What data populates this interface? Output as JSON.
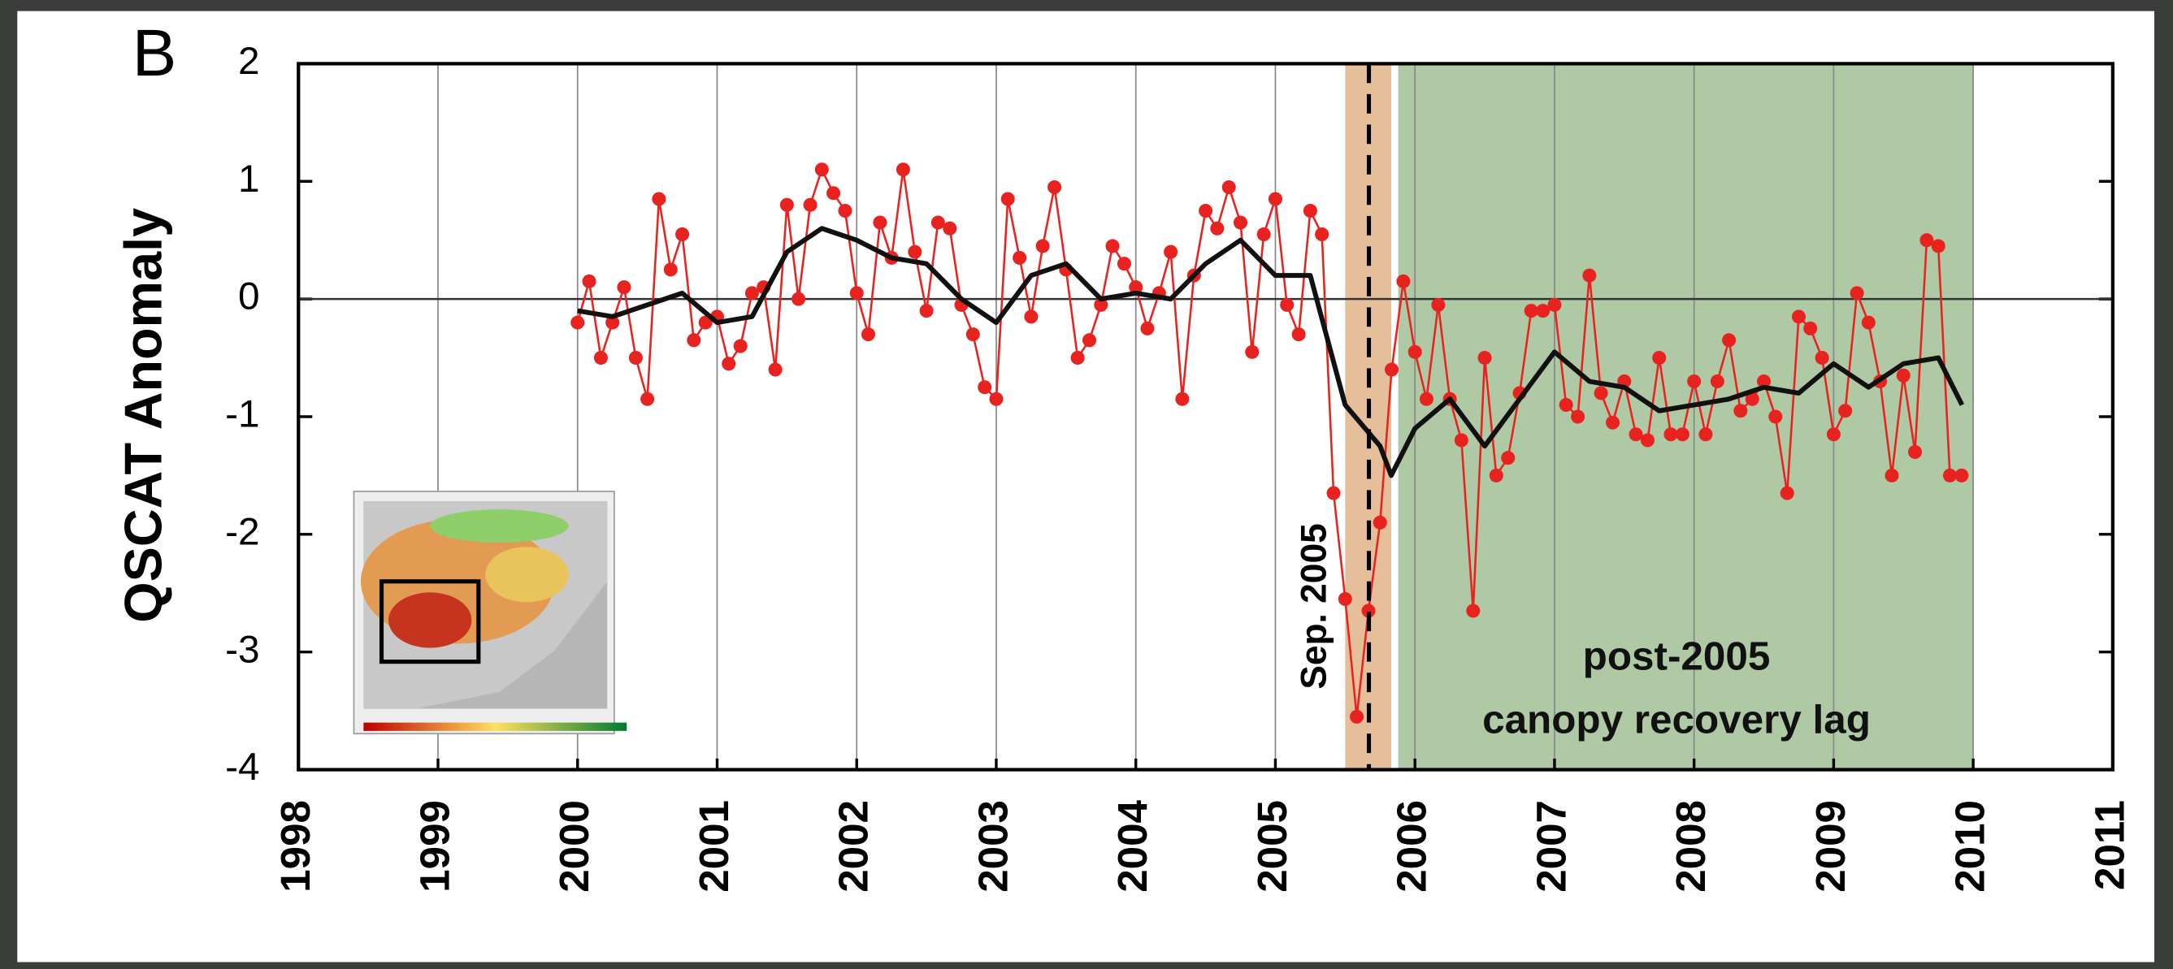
{
  "chart_data": {
    "type": "line",
    "panel_label": "B",
    "y_label": "QSCAT Anomaly",
    "xlim": [
      1998,
      2011
    ],
    "xticks": [
      1998,
      1999,
      2000,
      2001,
      2002,
      2003,
      2004,
      2005,
      2006,
      2007,
      2008,
      2009,
      2010,
      2011
    ],
    "ylim": [
      -4,
      2
    ],
    "yticks": [
      -4,
      -3,
      -2,
      -1,
      0,
      1,
      2
    ],
    "grid": true,
    "shaded_regions": [
      {
        "xlim": [
          2005.5,
          2005.83
        ],
        "color": "#e2b78f"
      },
      {
        "xlim": [
          2005.88,
          2010
        ],
        "color": "#a6c39b"
      }
    ],
    "event_line": 2005.67,
    "annotations": [
      "Sep. 2005",
      "post-2005",
      "canopy recovery lag"
    ],
    "series": [
      {
        "color": "#e8231f",
        "markers": true,
        "x": [
          2000,
          2000.083,
          2000.167,
          2000.25,
          2000.333,
          2000.417,
          2000.5,
          2000.583,
          2000.667,
          2000.75,
          2000.833,
          2000.917,
          2001,
          2001.083,
          2001.167,
          2001.25,
          2001.333,
          2001.417,
          2001.5,
          2001.583,
          2001.667,
          2001.75,
          2001.833,
          2001.917,
          2002,
          2002.083,
          2002.167,
          2002.25,
          2002.333,
          2002.417,
          2002.5,
          2002.583,
          2002.667,
          2002.75,
          2002.833,
          2002.917,
          2003,
          2003.083,
          2003.167,
          2003.25,
          2003.333,
          2003.417,
          2003.5,
          2003.583,
          2003.667,
          2003.75,
          2003.833,
          2003.917,
          2004,
          2004.083,
          2004.167,
          2004.25,
          2004.333,
          2004.417,
          2004.5,
          2004.583,
          2004.667,
          2004.75,
          2004.833,
          2004.917,
          2005,
          2005.083,
          2005.167,
          2005.25,
          2005.333,
          2005.417,
          2005.5,
          2005.583,
          2005.667,
          2005.75,
          2005.833,
          2005.917,
          2006,
          2006.083,
          2006.167,
          2006.25,
          2006.333,
          2006.417,
          2006.5,
          2006.583,
          2006.667,
          2006.75,
          2006.833,
          2006.917,
          2007,
          2007.083,
          2007.167,
          2007.25,
          2007.333,
          2007.417,
          2007.5,
          2007.583,
          2007.667,
          2007.75,
          2007.833,
          2007.917,
          2008,
          2008.083,
          2008.167,
          2008.25,
          2008.333,
          2008.417,
          2008.5,
          2008.583,
          2008.667,
          2008.75,
          2008.833,
          2008.917,
          2009,
          2009.083,
          2009.167,
          2009.25,
          2009.333,
          2009.417,
          2009.5,
          2009.583,
          2009.667,
          2009.75,
          2009.833,
          2009.917
        ],
        "values": [
          -0.2,
          0.15,
          -0.5,
          -0.2,
          0.1,
          -0.5,
          -0.85,
          0.85,
          0.25,
          0.55,
          -0.35,
          -0.2,
          -0.15,
          -0.55,
          -0.4,
          0.05,
          0.1,
          -0.6,
          0.8,
          0.0,
          0.8,
          1.1,
          0.9,
          0.75,
          0.05,
          -0.3,
          0.65,
          0.35,
          1.1,
          0.4,
          -0.1,
          0.65,
          0.6,
          -0.05,
          -0.3,
          -0.75,
          -0.85,
          0.85,
          0.35,
          -0.15,
          0.45,
          0.95,
          0.25,
          -0.5,
          -0.35,
          -0.05,
          0.45,
          0.3,
          0.1,
          -0.25,
          0.05,
          0.4,
          -0.85,
          0.2,
          0.75,
          0.6,
          0.95,
          0.65,
          -0.45,
          0.55,
          0.85,
          -0.05,
          -0.3,
          0.75,
          0.55,
          -1.65,
          -2.55,
          -3.55,
          -2.65,
          -1.9,
          -0.6,
          0.15,
          -0.45,
          -0.85,
          -0.05,
          -0.85,
          -1.2,
          -2.65,
          -0.5,
          -1.5,
          -1.35,
          -0.8,
          -0.1,
          -0.1,
          -0.05,
          -0.9,
          -1.0,
          0.2,
          -0.8,
          -1.05,
          -0.7,
          -1.15,
          -1.2,
          -0.5,
          -1.15,
          -1.15,
          -0.7,
          -1.15,
          -0.7,
          -0.35,
          -0.95,
          -0.85,
          -0.7,
          -1.0,
          -1.65,
          -0.15,
          -0.25,
          -0.5,
          -1.15,
          -0.95,
          0.05,
          -0.2,
          -0.7,
          -1.5,
          -0.65,
          -1.3,
          0.5,
          0.45,
          -1.5,
          -1.5
        ]
      },
      {
        "color": "#111111",
        "markers": false,
        "x": [
          2000,
          2000.25,
          2000.5,
          2000.75,
          2001,
          2001.25,
          2001.5,
          2001.75,
          2002,
          2002.25,
          2002.5,
          2002.75,
          2003,
          2003.25,
          2003.5,
          2003.75,
          2004,
          2004.25,
          2004.5,
          2004.75,
          2005,
          2005.25,
          2005.5,
          2005.75,
          2005.83,
          2006,
          2006.25,
          2006.5,
          2006.75,
          2007,
          2007.25,
          2007.5,
          2007.75,
          2008,
          2008.25,
          2008.5,
          2008.75,
          2009,
          2009.25,
          2009.5,
          2009.75,
          2009.92
        ],
        "values": [
          -0.1,
          -0.15,
          -0.05,
          0.05,
          -0.2,
          -0.15,
          0.4,
          0.6,
          0.5,
          0.35,
          0.3,
          0.0,
          -0.2,
          0.2,
          0.3,
          0.0,
          0.05,
          0.0,
          0.3,
          0.5,
          0.2,
          0.2,
          -0.9,
          -1.25,
          -1.5,
          -1.1,
          -0.85,
          -1.25,
          -0.85,
          -0.45,
          -0.7,
          -0.75,
          -0.95,
          -0.9,
          -0.85,
          -0.75,
          -0.8,
          -0.55,
          -0.75,
          -0.55,
          -0.5,
          -0.9
        ]
      }
    ]
  }
}
